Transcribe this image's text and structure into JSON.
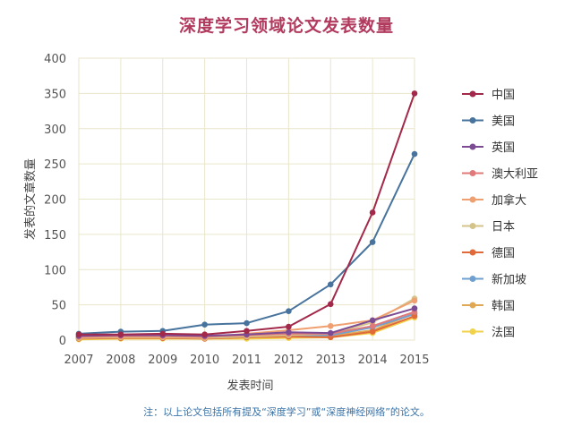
{
  "chart_data": {
    "type": "line",
    "title": "深度学习领域论文发表数量",
    "xlabel": "发表时间",
    "ylabel": "发表的文章数量",
    "x": [
      "2007",
      "2008",
      "2009",
      "2010",
      "2011",
      "2012",
      "2013",
      "2014",
      "2015"
    ],
    "ylim": [
      0,
      400
    ],
    "yticks": [
      0,
      50,
      100,
      150,
      200,
      250,
      300,
      350,
      400
    ],
    "grid": true,
    "legend": "right",
    "series": [
      {
        "name": "中国",
        "color": "#a3294a",
        "values": [
          8,
          8,
          9,
          8,
          13,
          19,
          51,
          181,
          350
        ]
      },
      {
        "name": "美国",
        "color": "#47739d",
        "values": [
          9,
          12,
          13,
          22,
          24,
          41,
          79,
          139,
          264
        ]
      },
      {
        "name": "英国",
        "color": "#7b4b94",
        "values": [
          6,
          7,
          7,
          6,
          8,
          11,
          10,
          28,
          45
        ]
      },
      {
        "name": "澳大利亚",
        "color": "#e07a7a",
        "values": [
          5,
          6,
          6,
          5,
          7,
          9,
          9,
          20,
          40
        ]
      },
      {
        "name": "加拿大",
        "color": "#f0a070",
        "values": [
          4,
          5,
          5,
          4,
          9,
          14,
          20,
          28,
          56
        ]
      },
      {
        "name": "日本",
        "color": "#d4c48a",
        "values": [
          3,
          4,
          4,
          3,
          5,
          7,
          9,
          25,
          59
        ]
      },
      {
        "name": "德国",
        "color": "#e06a3a",
        "values": [
          2,
          3,
          3,
          2,
          4,
          5,
          4,
          12,
          34
        ]
      },
      {
        "name": "新加坡",
        "color": "#6fa0d0",
        "values": [
          4,
          5,
          5,
          4,
          5,
          6,
          7,
          18,
          37
        ]
      },
      {
        "name": "韩国",
        "color": "#e0a855",
        "values": [
          3,
          4,
          4,
          3,
          4,
          6,
          6,
          14,
          38
        ]
      },
      {
        "name": "法国",
        "color": "#f2d24a",
        "values": [
          1,
          2,
          2,
          2,
          2,
          3,
          4,
          10,
          32
        ]
      }
    ]
  },
  "footnote": "注：以上论文包括所有提及“深度学习”或“深度神经网络”的论文。"
}
